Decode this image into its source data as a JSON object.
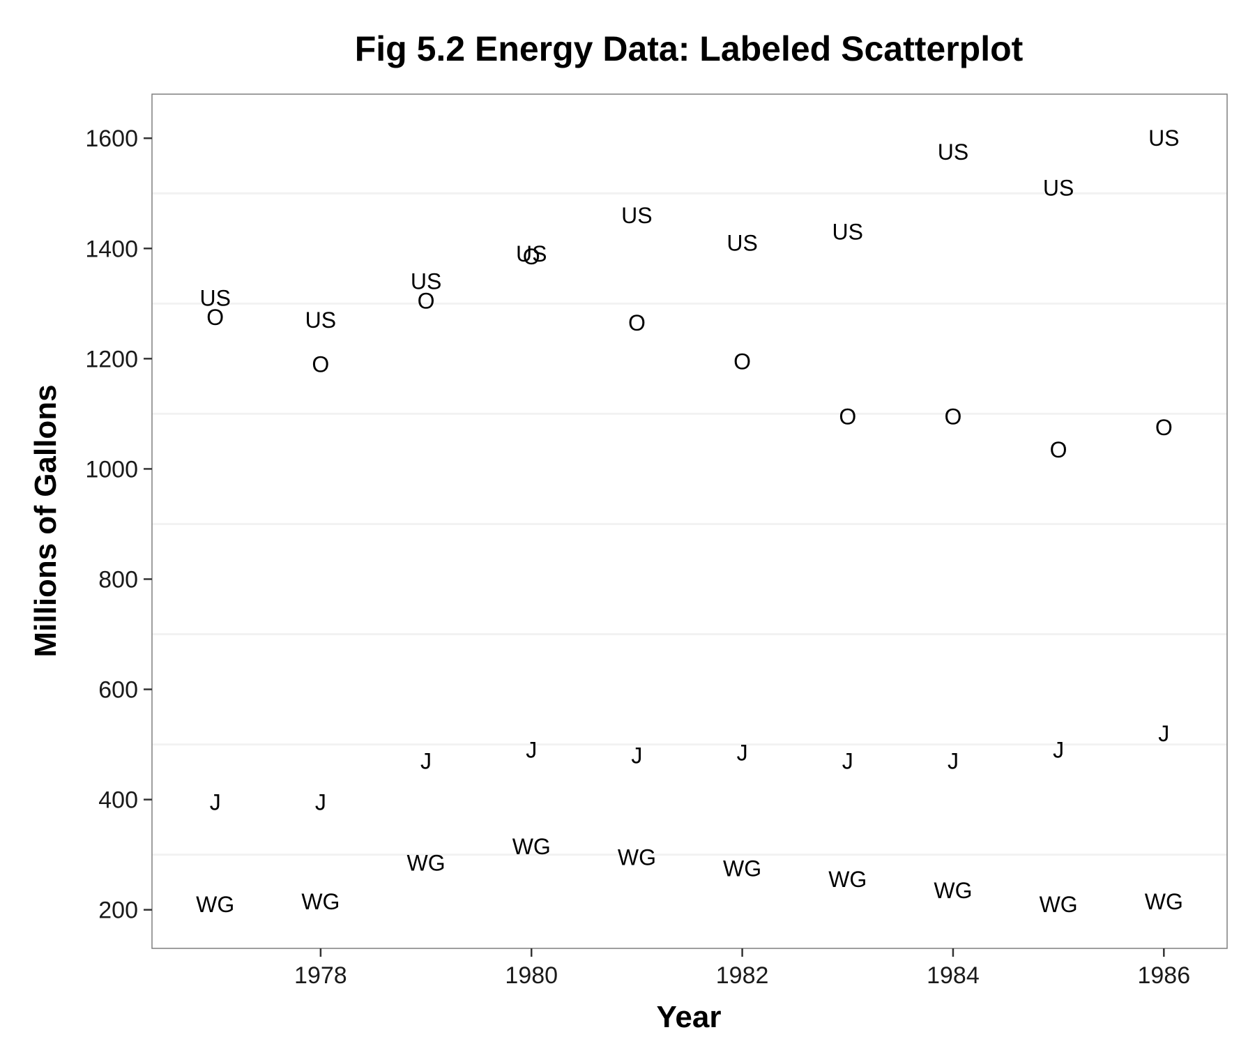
{
  "chart_data": {
    "type": "scatter",
    "title": "Fig 5.2 Energy Data: Labeled Scatterplot",
    "xlabel": "Year",
    "ylabel": "Millions of Gallons",
    "xlim": [
      1976.4,
      1986.6
    ],
    "ylim": [
      130,
      1680
    ],
    "xticks": [
      1978,
      1980,
      1982,
      1984,
      1986
    ],
    "yticks": [
      200,
      400,
      600,
      800,
      1000,
      1200,
      1400,
      1600
    ],
    "minor_gridlines_y": [
      300,
      500,
      700,
      900,
      1100,
      1300,
      1500
    ],
    "grid": true,
    "legend": "none",
    "series": [
      {
        "label": "US",
        "x": [
          1977,
          1978,
          1979,
          1980,
          1981,
          1982,
          1983,
          1984,
          1985,
          1986
        ],
        "y": [
          1310,
          1270,
          1340,
          1390,
          1460,
          1410,
          1430,
          1575,
          1510,
          1600
        ]
      },
      {
        "label": "O",
        "x": [
          1977,
          1978,
          1979,
          1980,
          1981,
          1982,
          1983,
          1984,
          1985,
          1986
        ],
        "y": [
          1275,
          1190,
          1305,
          1385,
          1265,
          1195,
          1095,
          1095,
          1035,
          1075
        ]
      },
      {
        "label": "J",
        "x": [
          1977,
          1978,
          1979,
          1980,
          1981,
          1982,
          1983,
          1984,
          1985,
          1986
        ],
        "y": [
          395,
          395,
          470,
          490,
          480,
          485,
          470,
          470,
          490,
          520
        ]
      },
      {
        "label": "WG",
        "x": [
          1977,
          1978,
          1979,
          1980,
          1981,
          1982,
          1983,
          1984,
          1985,
          1986
        ],
        "y": [
          210,
          215,
          285,
          315,
          295,
          275,
          255,
          235,
          210,
          215
        ]
      }
    ]
  }
}
